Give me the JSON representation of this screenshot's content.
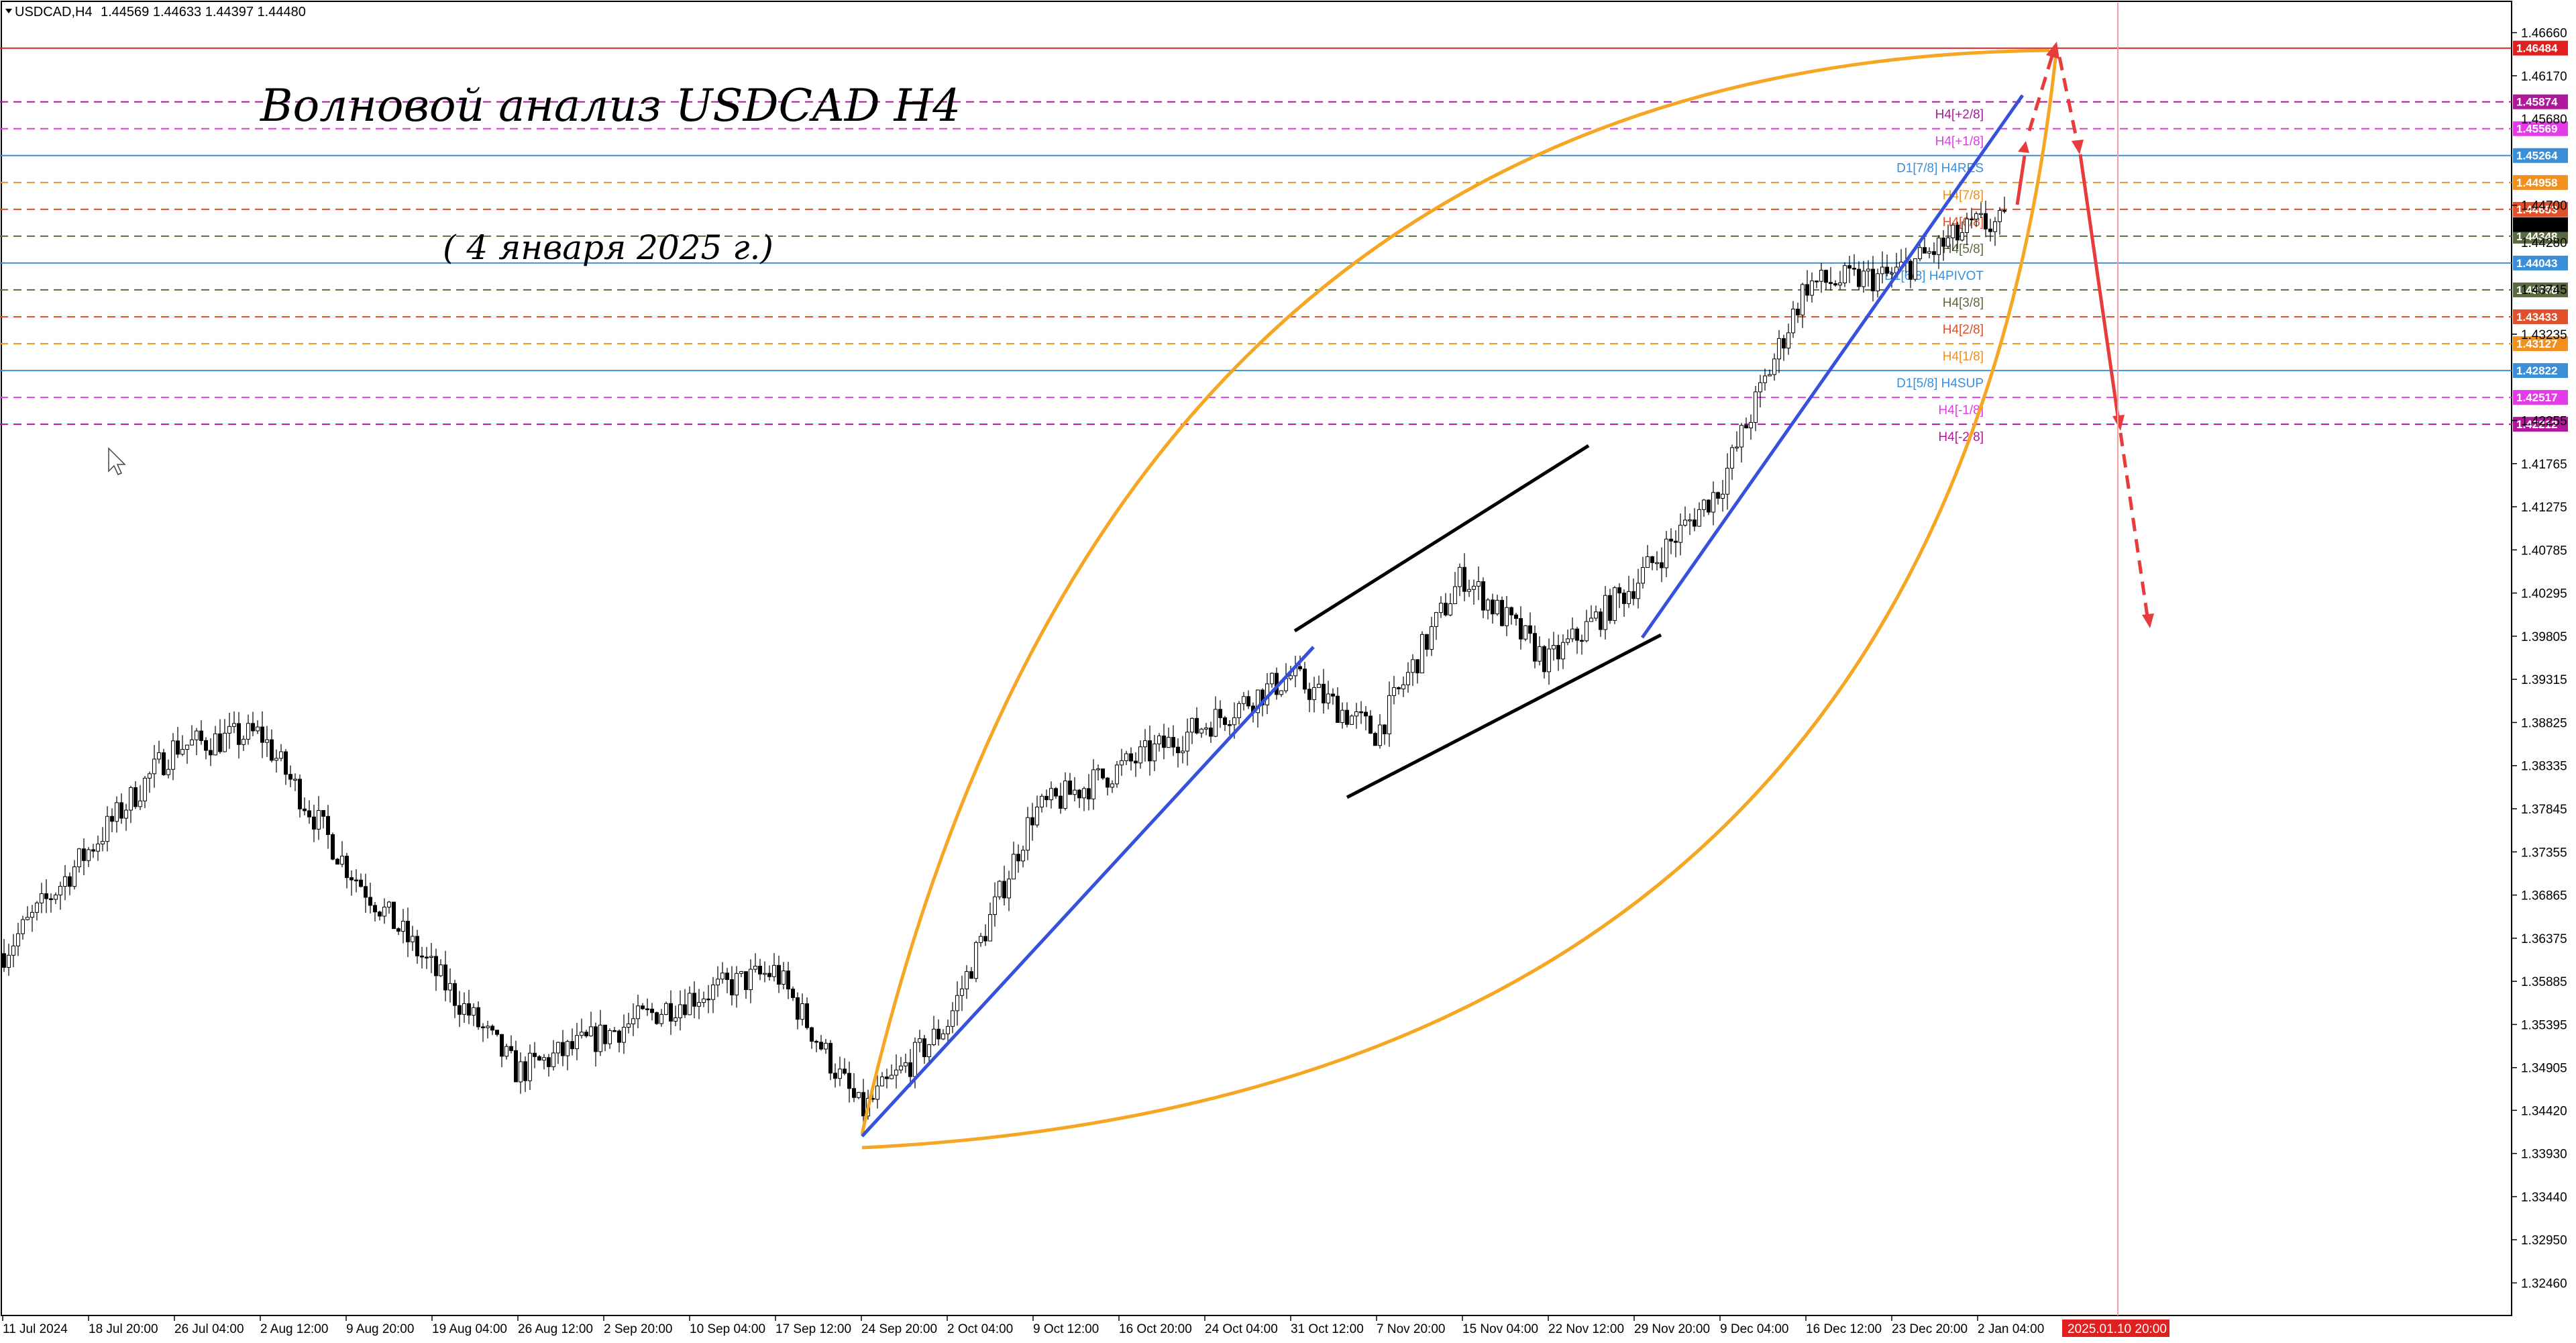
{
  "header": {
    "symbol": "USDCAD,H4",
    "ohlc": "1.44569 1.44633 1.44397 1.44480"
  },
  "annotations": {
    "title": "Волновой анализ USDCAD H4",
    "subtitle": "( 4 января 2025 г.)"
  },
  "colors": {
    "background": "#ffffff",
    "candles": "#000000",
    "blue_trend": "#3651db",
    "black_channel": "#000000",
    "orange_arc": "#f5a623",
    "red_arrow": "#e83b3b",
    "grid": "#d0d0d0"
  },
  "chart_data": {
    "type": "candlestick",
    "title": "Волновой анализ USDCAD H4",
    "y_axis_ticks": [
      "1.46660",
      "1.46170",
      "1.44700",
      "1.43235",
      "1.42255",
      "1.41765",
      "1.41275",
      "1.40785",
      "1.40295",
      "1.39805",
      "1.39315",
      "1.38825",
      "1.38335",
      "1.37845",
      "1.37355",
      "1.36865",
      "1.36375",
      "1.35885",
      "1.35395",
      "1.34905",
      "1.34420",
      "1.33930",
      "1.33440",
      "1.32950",
      "1.32460"
    ],
    "y_axis_ticks_overlapped": [
      "1.45680",
      "1.44280",
      "1.43745"
    ],
    "y_range": [
      1.3209,
      1.47
    ],
    "x_axis_ticks": [
      "11 Jul 2024",
      "18 Jul 20:00",
      "26 Jul 04:00",
      "2 Aug 12:00",
      "9 Aug 20:00",
      "19 Aug 04:00",
      "26 Aug 12:00",
      "2 Sep 20:00",
      "10 Sep 04:00",
      "17 Sep 12:00",
      "24 Sep 20:00",
      "2 Oct 04:00",
      "9 Oct 12:00",
      "16 Oct 20:00",
      "24 Oct 04:00",
      "31 Oct 12:00",
      "7 Nov 20:00",
      "15 Nov 04:00",
      "22 Nov 12:00",
      "29 Nov 20:00",
      "9 Dec 04:00",
      "16 Dec 12:00",
      "23 Dec 20:00",
      "2 Jan 04:00"
    ],
    "x_cursor_label": "2025.01.10 20:00",
    "price_series_approx": [
      {
        "x": "11 Jul 2024",
        "y": 1.362
      },
      {
        "x": "26 Jul 04:00",
        "y": 1.3855
      },
      {
        "x": "2 Aug 12:00",
        "y": 1.387
      },
      {
        "x": "9 Aug 20:00",
        "y": 1.372
      },
      {
        "x": "26 Aug 12:00",
        "y": 1.3485
      },
      {
        "x": "10 Sep 04:00",
        "y": 1.357
      },
      {
        "x": "17 Sep 12:00",
        "y": 1.36
      },
      {
        "x": "24 Sep 20:00",
        "y": 1.344
      },
      {
        "x": "2 Oct 04:00",
        "y": 1.354
      },
      {
        "x": "9 Oct 12:00",
        "y": 1.378
      },
      {
        "x": "24 Oct 04:00",
        "y": 1.388
      },
      {
        "x": "31 Oct 12:00",
        "y": 1.3935
      },
      {
        "x": "7 Nov 20:00",
        "y": 1.387
      },
      {
        "x": "15 Nov 04:00",
        "y": 1.405
      },
      {
        "x": "22 Nov 12:00",
        "y": 1.395
      },
      {
        "x": "29 Nov 20:00",
        "y": 1.404
      },
      {
        "x": "9 Dec 04:00",
        "y": 1.415
      },
      {
        "x": "16 Dec 12:00",
        "y": 1.438
      },
      {
        "x": "23 Dec 20:00",
        "y": 1.439
      },
      {
        "x": "2 Jan 04:00",
        "y": 1.4448
      }
    ],
    "levels": [
      {
        "label": "",
        "price_tag": "1.46484",
        "price": 1.46484,
        "color": "#e02020",
        "style": "solid"
      },
      {
        "label": "H4[+2/8]",
        "price_tag": "1.45874",
        "price": 1.45874,
        "color": "#b0179a",
        "style": "dash"
      },
      {
        "label": "H4[+1/8]",
        "price_tag": "1.45569",
        "price": 1.45569,
        "color": "#e23ce8",
        "style": "dash"
      },
      {
        "label": "D1[7/8] H4RES",
        "price_tag": "1.45264",
        "price": 1.45264,
        "color": "#3a8fd8",
        "style": "solid"
      },
      {
        "label": "H4[7/8]",
        "price_tag": "1.44958",
        "price": 1.44958,
        "color": "#f0901e",
        "style": "dash"
      },
      {
        "label": "H4[6/8]",
        "price_tag": "1.44653",
        "price": 1.44653,
        "color": "#e0502a",
        "style": "dash"
      },
      {
        "label": "H4[5/8]",
        "price_tag": "1.44348",
        "price": 1.44348,
        "color": "#5a6a40",
        "style": "dash"
      },
      {
        "label": "D1[6/8] H4PIVOT",
        "price_tag": "1.44043",
        "price": 1.44043,
        "color": "#3a8fd8",
        "style": "solid"
      },
      {
        "label": "H4[3/8]",
        "price_tag": "1.43738",
        "price": 1.43738,
        "color": "#5a6a40",
        "style": "dash"
      },
      {
        "label": "H4[2/8]",
        "price_tag": "1.43433",
        "price": 1.43433,
        "color": "#e0502a",
        "style": "dash"
      },
      {
        "label": "H4[1/8]",
        "price_tag": "1.43127",
        "price": 1.43127,
        "color": "#f0901e",
        "style": "dash"
      },
      {
        "label": "D1[5/8] H4SUP",
        "price_tag": "1.42822",
        "price": 1.42822,
        "color": "#3a8fd8",
        "style": "solid"
      },
      {
        "label": "H4[-1/8]",
        "price_tag": "1.42517",
        "price": 1.42517,
        "color": "#e23ce8",
        "style": "dash"
      },
      {
        "label": "H4[-2/8]",
        "price_tag": "1.42212",
        "price": 1.42212,
        "color": "#b0179a",
        "style": "dash"
      }
    ]
  }
}
